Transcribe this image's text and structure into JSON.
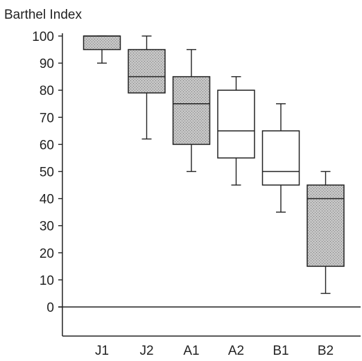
{
  "chart_data": {
    "type": "box",
    "ylabel": "Barthel Index",
    "xlabel": "",
    "ylim": [
      -10,
      100
    ],
    "y_ticks": [
      100,
      90,
      80,
      70,
      60,
      50,
      40,
      30,
      20,
      10,
      0
    ],
    "categories": [
      "J1",
      "J2",
      "A1",
      "A2",
      "B1",
      "B2"
    ],
    "boxes": [
      {
        "category": "J1",
        "whisker_low": 90,
        "q1": 95,
        "median": 100,
        "q3": 100,
        "whisker_high": 100,
        "fill": "#b8b8b8"
      },
      {
        "category": "J2",
        "whisker_low": 62,
        "q1": 79,
        "median": 85,
        "q3": 95,
        "whisker_high": 100,
        "fill": "#b8b8b8"
      },
      {
        "category": "A1",
        "whisker_low": 50,
        "q1": 60,
        "median": 75,
        "q3": 85,
        "whisker_high": 95,
        "fill": "#b8b8b8"
      },
      {
        "category": "A2",
        "whisker_low": 45,
        "q1": 55,
        "median": 65,
        "q3": 80,
        "whisker_high": 85,
        "fill": "#ffffff"
      },
      {
        "category": "B1",
        "whisker_low": 35,
        "q1": 45,
        "median": 50,
        "q3": 65,
        "whisker_high": 75,
        "fill": "#ffffff"
      },
      {
        "category": "B2",
        "whisker_low": 5,
        "q1": 15,
        "median": 40,
        "q3": 45,
        "whisker_high": 50,
        "fill": "#a8a8a8"
      }
    ],
    "grid": false,
    "legend": "none",
    "line_color": "#222222"
  }
}
